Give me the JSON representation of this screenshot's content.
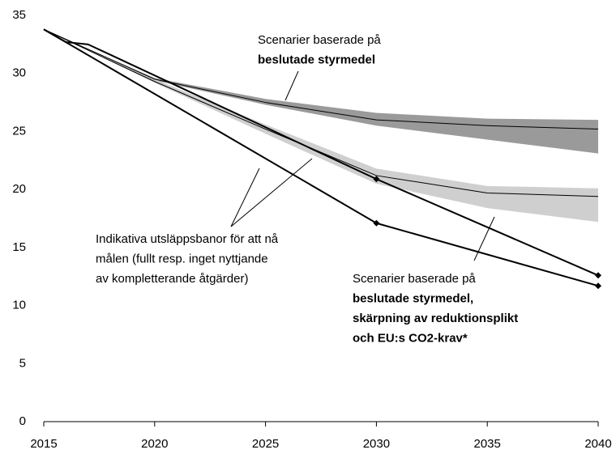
{
  "chart_data": {
    "type": "line",
    "xlim": [
      2015,
      2040
    ],
    "xticks": [
      2015,
      2020,
      2025,
      2030,
      2035,
      2040
    ],
    "ylim": [
      0,
      35
    ],
    "yticks": [
      0,
      5,
      10,
      15,
      20,
      25,
      30,
      35
    ],
    "grid": false,
    "bands": [
      {
        "color": "#9a9a9a",
        "x": [
          2015,
          2020,
          2025,
          2030,
          2035,
          2040
        ],
        "upper": [
          33.8,
          29.6,
          27.8,
          26.6,
          26.1,
          26.0
        ],
        "lower": [
          33.8,
          29.4,
          27.3,
          25.5,
          24.3,
          23.1
        ]
      },
      {
        "color": "#cfcfcf",
        "x": [
          2015,
          2020,
          2025,
          2030,
          2035,
          2040
        ],
        "upper": [
          33.8,
          29.5,
          25.6,
          21.8,
          20.3,
          20.1
        ],
        "lower": [
          33.8,
          29.2,
          24.8,
          20.5,
          18.4,
          17.2
        ]
      }
    ],
    "series": [
      {
        "color": "#000000",
        "width": 1,
        "x": [
          2015,
          2020,
          2025,
          2030,
          2035,
          2040
        ],
        "values": [
          33.8,
          29.5,
          27.5,
          26.0,
          25.5,
          25.2
        ]
      },
      {
        "color": "#000000",
        "width": 1,
        "x": [
          2015,
          2020,
          2025,
          2030,
          2035,
          2040
        ],
        "values": [
          33.8,
          29.3,
          25.2,
          21.2,
          19.7,
          19.4
        ]
      },
      {
        "color": "#000000",
        "width": 2,
        "x": [
          2015,
          2016,
          2017,
          2030,
          2040
        ],
        "values": [
          33.8,
          32.7,
          32.5,
          20.9,
          12.6
        ],
        "marker_x": [
          2030,
          2040
        ]
      },
      {
        "color": "#000000",
        "width": 2,
        "x": [
          2015,
          2030,
          2040
        ],
        "values": [
          33.8,
          17.1,
          11.7
        ],
        "marker_x": [
          2030,
          2040
        ]
      }
    ],
    "annotations": [
      {
        "lines": [
          "Scenarier baserade på",
          "beslutade styrmedel"
        ],
        "bold": [
          false,
          true
        ]
      },
      {
        "lines": [
          "Indikativa utsläppsbanor för att nå",
          "målen (fullt resp. inget nyttjande",
          "av kompletterande åtgärder)"
        ],
        "bold": [
          false,
          false,
          false
        ]
      },
      {
        "lines": [
          "Scenarier baserade på",
          "beslutade styrmedel,",
          "skärpning av reduktionsplikt",
          "och EU:s CO2-krav*"
        ],
        "bold": [
          false,
          true,
          true,
          true
        ]
      }
    ]
  }
}
